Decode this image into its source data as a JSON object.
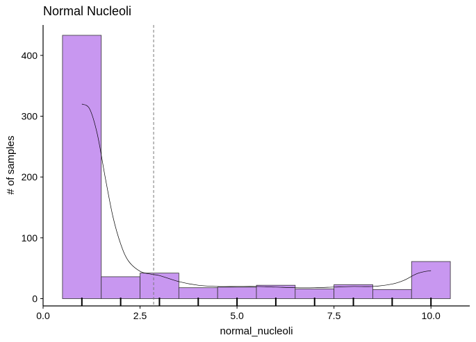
{
  "chart_data": {
    "type": "bar",
    "title": "Normal Nucleoli",
    "xlabel": "normal_nucleoli",
    "ylabel": "# of samples",
    "xlim": [
      0,
      11
    ],
    "ylim": [
      -12,
      450
    ],
    "x_ticks": [
      {
        "value": 0,
        "label": "0.0"
      },
      {
        "value": 2.5,
        "label": "2.5"
      },
      {
        "value": 5,
        "label": "5.0"
      },
      {
        "value": 7.5,
        "label": "7.5"
      },
      {
        "value": 10,
        "label": "10.0"
      }
    ],
    "y_ticks": [
      {
        "value": 0,
        "label": "0"
      },
      {
        "value": 100,
        "label": "100"
      },
      {
        "value": 200,
        "label": "200"
      },
      {
        "value": 300,
        "label": "300"
      },
      {
        "value": 400,
        "label": "400"
      }
    ],
    "bins": [
      {
        "x0": 0.5,
        "x1": 1.5,
        "count": 433
      },
      {
        "x0": 1.5,
        "x1": 2.5,
        "count": 36
      },
      {
        "x0": 2.5,
        "x1": 3.5,
        "count": 42
      },
      {
        "x0": 3.5,
        "x1": 4.5,
        "count": 18
      },
      {
        "x0": 4.5,
        "x1": 5.5,
        "count": 19
      },
      {
        "x0": 5.5,
        "x1": 6.5,
        "count": 22
      },
      {
        "x0": 6.5,
        "x1": 7.5,
        "count": 16
      },
      {
        "x0": 7.5,
        "x1": 8.5,
        "count": 23
      },
      {
        "x0": 8.5,
        "x1": 9.5,
        "count": 15
      },
      {
        "x0": 9.5,
        "x1": 10.5,
        "count": 61
      }
    ],
    "density_curve": [
      [
        1.0,
        320
      ],
      [
        1.2,
        312
      ],
      [
        1.4,
        270
      ],
      [
        1.6,
        200
      ],
      [
        1.8,
        135
      ],
      [
        2.0,
        90
      ],
      [
        2.2,
        62
      ],
      [
        2.5,
        45
      ],
      [
        2.8,
        40
      ],
      [
        3.0,
        38
      ],
      [
        3.5,
        28
      ],
      [
        4.0,
        22
      ],
      [
        4.5,
        20
      ],
      [
        5.0,
        20
      ],
      [
        5.5,
        20
      ],
      [
        6.0,
        19
      ],
      [
        6.5,
        18
      ],
      [
        7.0,
        18
      ],
      [
        7.5,
        19
      ],
      [
        8.0,
        20
      ],
      [
        8.5,
        20
      ],
      [
        9.0,
        24
      ],
      [
        9.3,
        30
      ],
      [
        9.6,
        40
      ],
      [
        9.8,
        44
      ],
      [
        10.0,
        46
      ]
    ],
    "mean_line_x": 2.85,
    "rug_x": [
      1,
      2,
      3,
      4,
      5,
      6,
      7,
      8,
      9,
      10
    ],
    "grid": false,
    "legend": "none",
    "colors": {
      "bar_fill": "#c897f0",
      "bar_stroke": "#333333",
      "curve": "#000000",
      "mean_line": "#777777",
      "axis": "#000000"
    }
  }
}
